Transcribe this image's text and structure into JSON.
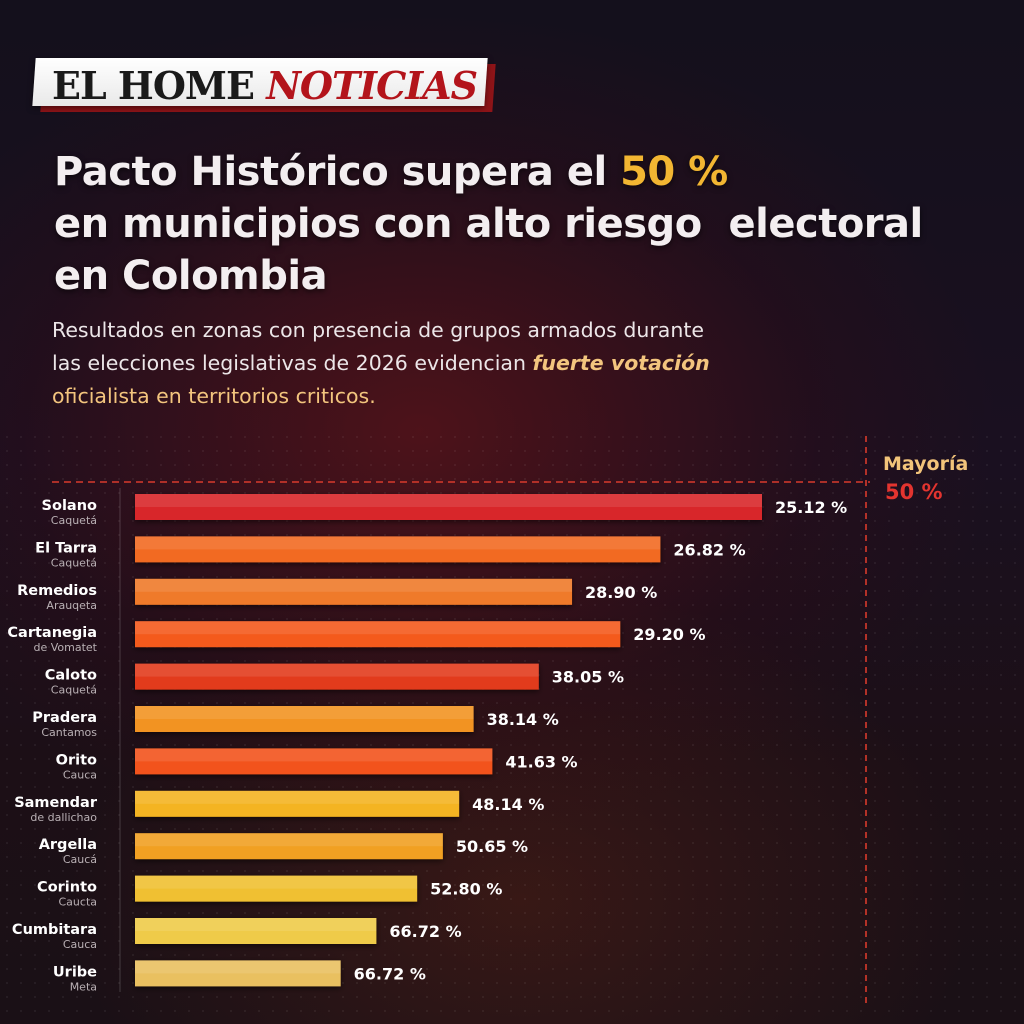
{
  "brand": {
    "part1": "EL HOME",
    "part2": "NOTICIAS"
  },
  "headline": {
    "line1_pre": "Pacto Histórico supera el ",
    "line1_highlight": "50 %",
    "line2": "en municipios con alto riesgo  electoral",
    "line3": "en Colombia"
  },
  "subheadline": {
    "line1": "Resultados en zonas con presencia de grupos armados durante",
    "line2_pre": "las elecciones legislativas de 2026 evidencian ",
    "line2_emph": "fuerte votación",
    "line3": "oficialista en territorios criticos."
  },
  "colors": {
    "accent_yellow": "#f2b632",
    "brand_red": "#b3141b",
    "reference_line": "#d83a2c",
    "bar_gradient_top": [
      "#b51a26",
      "#ff2d1f"
    ],
    "bar_gradient_bottom": [
      "#d9b058",
      "#f7d36c"
    ]
  },
  "chart_data": {
    "type": "bar",
    "orientation": "horizontal",
    "unit": "%",
    "reference_line": {
      "value": 50,
      "label": "Mayoría",
      "value_label": "50 %"
    },
    "grid": false,
    "categories": [
      {
        "name": "Solano",
        "sub": "Caquetá"
      },
      {
        "name": "El Tarra",
        "sub": "Caquetá"
      },
      {
        "name": "Remedios",
        "sub": "Arauqeta"
      },
      {
        "name": "Cartanegia",
        "sub": "de Vomatet"
      },
      {
        "name": "Caloto",
        "sub": "Caquetá"
      },
      {
        "name": "Pradera",
        "sub": "Cantamos"
      },
      {
        "name": "Orito",
        "sub": "Cauca"
      },
      {
        "name": "Samendar",
        "sub": "de dallichao"
      },
      {
        "name": "Argella",
        "sub": "Caucá"
      },
      {
        "name": "Corinto",
        "sub": "Caucta"
      },
      {
        "name": "Cumbitara",
        "sub": "Cauca"
      },
      {
        "name": "Uribe",
        "sub": "Meta"
      }
    ],
    "values": [
      25.12,
      26.82,
      28.9,
      29.2,
      38.05,
      38.14,
      41.63,
      48.14,
      50.65,
      52.8,
      66.72,
      66.72
    ],
    "value_labels": [
      "25.12 %",
      "26.82 %",
      "28.90 %",
      "29.20 %",
      "38.05 %",
      "38.14 %",
      "41.63 %",
      "48.14 %",
      "50.65 %",
      "52.80 %",
      "66.72 %",
      "66.72 %"
    ],
    "bar_lengths_relative": [
      1.0,
      0.838,
      0.697,
      0.774,
      0.644,
      0.54,
      0.57,
      0.517,
      0.491,
      0.45,
      0.385,
      0.328
    ],
    "bar_colors": [
      "#d8262a",
      "#f26a22",
      "#ef7a2a",
      "#f45a1c",
      "#e23a1c",
      "#f29324",
      "#f2531c",
      "#f4b422",
      "#f1a020",
      "#f0c030",
      "#efcb48",
      "#e9c060"
    ]
  }
}
